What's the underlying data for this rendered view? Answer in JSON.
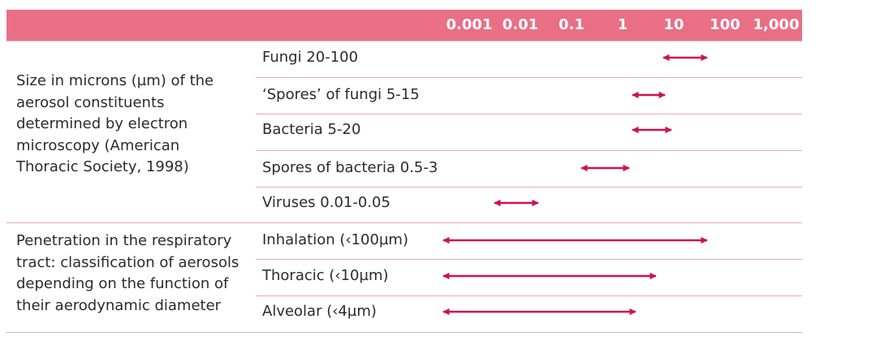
{
  "header": {
    "scale_ticks": [
      "0.001",
      "0.01",
      "0.1",
      "1",
      "10",
      "100",
      "1,000"
    ],
    "band_color": "#e86f86"
  },
  "groups": [
    {
      "label": "Size in microns (µm) of the\naerosol constituents\ndetermined by electron\nmicroscopy (American\nThoracic Society, 1998)",
      "rows": [
        {
          "label": "Fungi 20-100",
          "range_um": [
            20,
            100
          ]
        },
        {
          "label": "‘Spores’ of fungi 5-15",
          "range_um": [
            5,
            15
          ]
        },
        {
          "label": "Bacteria 5-20",
          "range_um": [
            5,
            20
          ]
        },
        {
          "label": "Spores of bacteria 0.5-3",
          "range_um": [
            0.5,
            3
          ]
        },
        {
          "label": "Viruses 0.01-0.05",
          "range_um": [
            0.01,
            0.05
          ]
        }
      ]
    },
    {
      "label": "Penetration in the respiratory\ntract: classification of aerosols\ndepending on the function of\ntheir aerodynamic diameter",
      "rows": [
        {
          "label": "Inhalation (‹100µm)",
          "range_um": [
            0.001,
            100
          ]
        },
        {
          "label": "Thoracic (‹10µm)",
          "range_um": [
            0.001,
            10
          ]
        },
        {
          "label": "Alveolar (‹4µm)",
          "range_um": [
            0.001,
            4
          ]
        }
      ]
    }
  ],
  "colors": {
    "arrow": "#d0104f",
    "rule": "#e9a9b6",
    "text": "#2b2b2b"
  }
}
